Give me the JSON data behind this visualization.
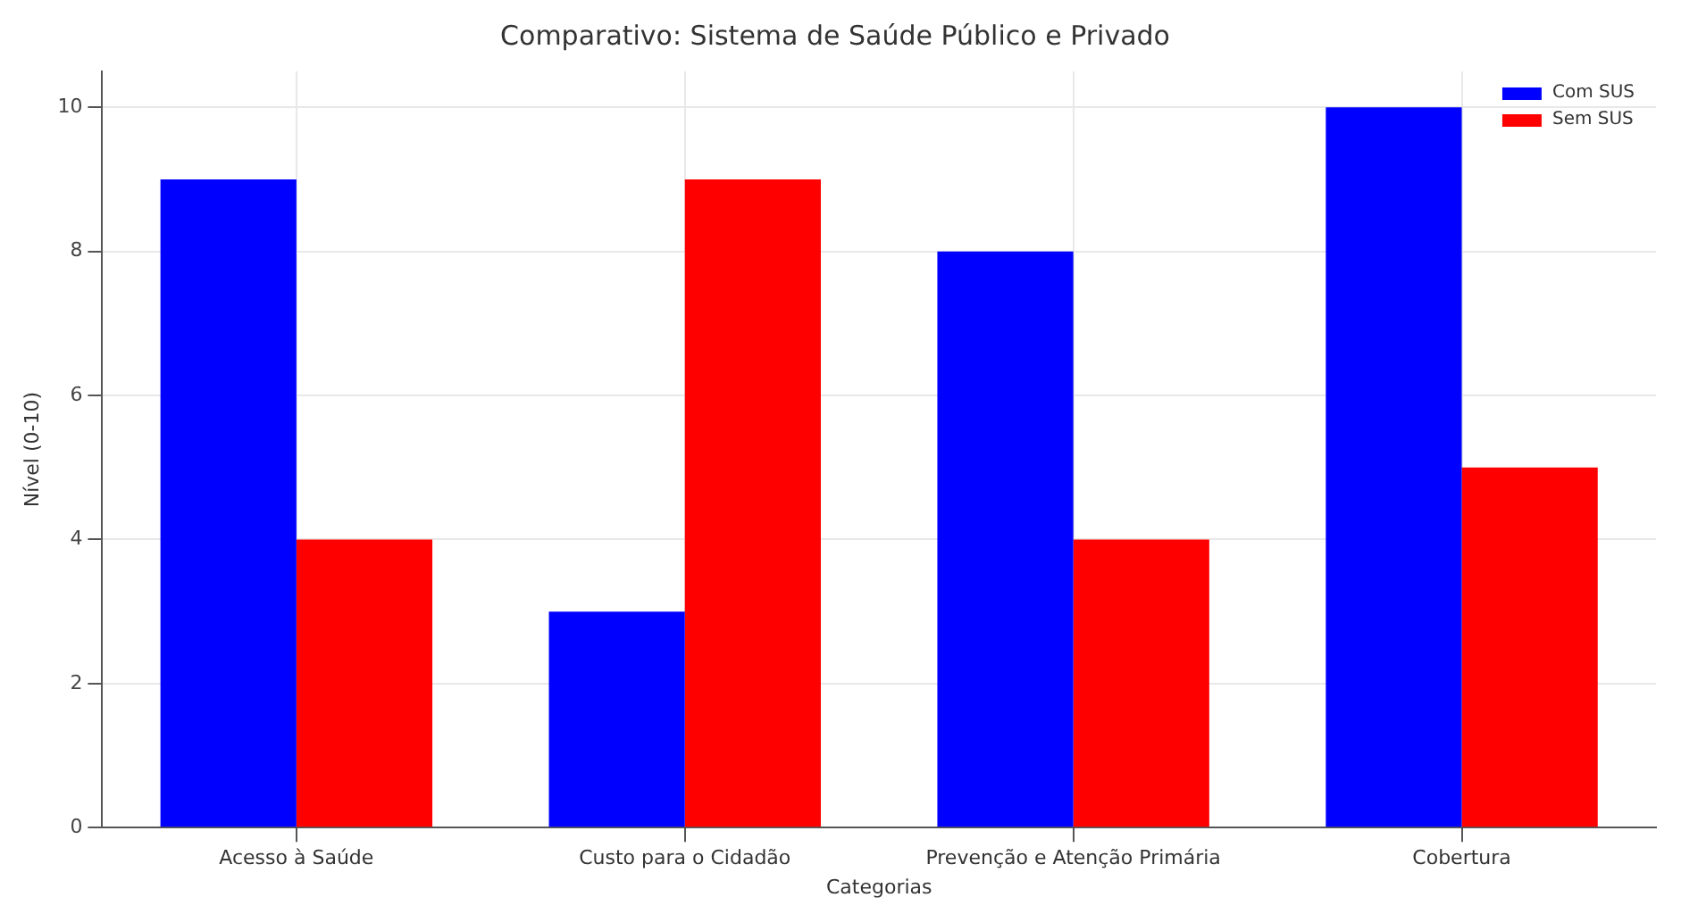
{
  "chart_data": {
    "type": "bar",
    "title": "Comparativo: Sistema de Saúde Público e Privado",
    "xlabel": "Categorias",
    "ylabel": "Nível (0-10)",
    "categories": [
      "Acesso à Saúde",
      "Custo para o Cidadão",
      "Prevenção e Atenção Primária",
      "Cobertura"
    ],
    "series": [
      {
        "name": "Com SUS",
        "color": "#0000ff",
        "values": [
          9,
          3,
          8,
          10
        ]
      },
      {
        "name": "Sem SUS",
        "color": "#ff0000",
        "values": [
          4,
          9,
          4,
          5
        ]
      }
    ],
    "ylim": [
      0,
      10.5
    ],
    "yticks": [
      0,
      2,
      4,
      6,
      8,
      10
    ],
    "grid": true,
    "legend": "top right"
  }
}
